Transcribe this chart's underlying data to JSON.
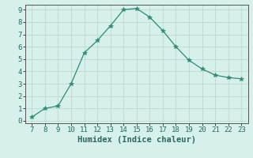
{
  "x": [
    7,
    8,
    9,
    10,
    11,
    12,
    13,
    14,
    15,
    16,
    17,
    18,
    19,
    20,
    21,
    22,
    23
  ],
  "y": [
    0.3,
    1.0,
    1.2,
    3.0,
    5.5,
    6.5,
    7.7,
    9.0,
    9.1,
    8.4,
    7.3,
    6.0,
    4.9,
    4.2,
    3.7,
    3.5,
    3.4
  ],
  "xlim_min": 6.5,
  "xlim_max": 23.5,
  "ylim_min": -0.2,
  "ylim_max": 9.4,
  "xlabel": "Humidex (Indice chaleur)",
  "xticks": [
    7,
    8,
    9,
    10,
    11,
    12,
    13,
    14,
    15,
    16,
    17,
    18,
    19,
    20,
    21,
    22,
    23
  ],
  "yticks": [
    0,
    1,
    2,
    3,
    4,
    5,
    6,
    7,
    8,
    9
  ],
  "line_color": "#2e8b72",
  "marker": "*",
  "marker_size": 4,
  "background_color": "#d6f0ec",
  "grid_color": "#c0d8d0",
  "tick_fontsize": 6.5,
  "xlabel_fontsize": 7.5,
  "xlabel_fontweight": "bold",
  "spine_color": "#555555"
}
